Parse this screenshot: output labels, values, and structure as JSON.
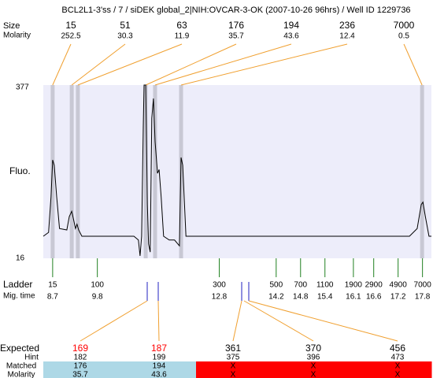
{
  "chart_data": {
    "type": "line",
    "title": "BCL2L1-3'ss / 7 / siDEK global_2|NIH:OVCAR-3-OK (2007-10-26 96hrs) / Well ID 1229736",
    "size_label": "Size",
    "molarity_label": "Molarity",
    "y_label": "Fluo.",
    "ylim": [
      16,
      377
    ],
    "yticks": [
      16,
      377
    ],
    "xlim": [
      8.47,
      18.02
    ],
    "background": "#ededfa",
    "peak_color": "#c8c8d4",
    "link_color": "#f0a030",
    "x": [
      8.47,
      8.6,
      8.66,
      8.7,
      8.74,
      8.8,
      8.87,
      9.05,
      9.11,
      9.17,
      9.22,
      9.26,
      9.3,
      9.34,
      9.42,
      10.7,
      10.81,
      10.85,
      10.89,
      10.93,
      10.95,
      10.99,
      11.03,
      11.06,
      11.1,
      11.14,
      11.18,
      11.22,
      11.28,
      11.32,
      11.37,
      11.43,
      11.57,
      11.7,
      11.82,
      11.86,
      11.9,
      11.98,
      17.48,
      17.67,
      17.77,
      17.81,
      17.87,
      17.96,
      18.02
    ],
    "series": [
      {
        "name": "Fluo.",
        "color": "#000000",
        "values": [
          62,
          70,
          144,
          221,
          210,
          144,
          78,
          75,
          103,
          114,
          95,
          78,
          87,
          75,
          62,
          62,
          54,
          21,
          62,
          292,
          377,
          377,
          128,
          46,
          29,
          308,
          349,
          259,
          193,
          201,
          144,
          62,
          54,
          54,
          42,
          226,
          210,
          62,
          62,
          78,
          128,
          133,
          103,
          62,
          62
        ]
      }
    ],
    "peaks": {
      "size": [
        15,
        51,
        63,
        176,
        194,
        236,
        7000
      ],
      "molarity": [
        252.5,
        30.3,
        11.9,
        35.7,
        43.6,
        12.4,
        0.5
      ],
      "time": [
        8.7,
        9.17,
        9.32,
        10.99,
        11.22,
        11.86,
        17.79
      ]
    },
    "ladder": {
      "label": "Ladder",
      "time_label": "Mig. time",
      "color": "#208020",
      "sizes": [
        15,
        100,
        300,
        500,
        700,
        1100,
        1900,
        2900,
        4900,
        7000
      ],
      "times": [
        8.7,
        9.8,
        12.8,
        14.2,
        14.8,
        15.4,
        16.1,
        16.6,
        17.2,
        17.8
      ]
    },
    "table": {
      "expected_label": "Expected",
      "hint_label": "Hint",
      "matched_label": "Matched",
      "molarity_label": "Molarity",
      "expected": [
        169,
        187,
        361,
        370,
        456
      ],
      "expected_colors": [
        "#ff0000",
        "#ff0000",
        "#000000",
        "#000000",
        "#000000"
      ],
      "hint": [
        182,
        199,
        375,
        396,
        473
      ],
      "matched": [
        "176",
        "194",
        "X",
        "X",
        "X"
      ],
      "molarity": [
        "35.7",
        "43.6",
        "X",
        "X",
        "X"
      ],
      "row_colors": [
        "#add8e6",
        "#add8e6",
        "#ff0000",
        "#ff0000",
        "#ff0000"
      ]
    }
  }
}
